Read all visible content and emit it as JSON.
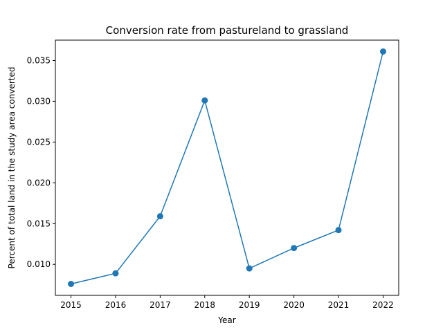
{
  "chart_data": {
    "type": "line",
    "title": "Conversion rate from pastureland to grassland",
    "xlabel": "Year",
    "ylabel": "Percent of total land in the study area converted",
    "x": [
      2015,
      2016,
      2017,
      2018,
      2019,
      2020,
      2021,
      2022
    ],
    "series": [
      {
        "values": [
          0.0076,
          0.0089,
          0.0159,
          0.0301,
          0.0095,
          0.012,
          0.0142,
          0.0361
        ],
        "color": "#1f77b4",
        "marker": "circle"
      }
    ],
    "xlim": [
      2014.65,
      2022.35
    ],
    "ylim": [
      0.0062,
      0.0375
    ],
    "xticks": [
      "2015",
      "2016",
      "2017",
      "2018",
      "2019",
      "2020",
      "2021",
      "2022"
    ],
    "yticks": [
      "0.010",
      "0.015",
      "0.020",
      "0.025",
      "0.030",
      "0.035"
    ],
    "grid": false
  }
}
